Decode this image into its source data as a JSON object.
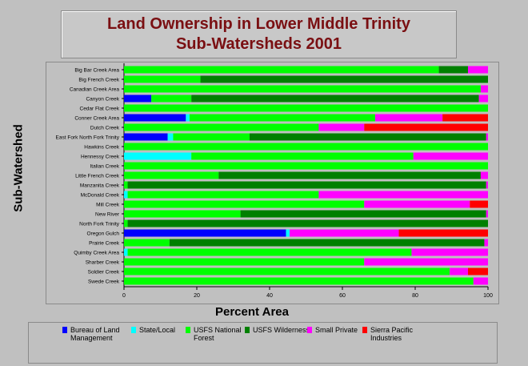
{
  "chart_data": {
    "type": "bar",
    "orientation": "horizontal",
    "stacked": true,
    "title": "Land Ownership in Lower Middle Trinity Sub-Watersheds 2001",
    "title_lines": [
      "Land Ownership in Lower Middle Trinity",
      "Sub-Watersheds 2001"
    ],
    "xlabel": "Percent Area",
    "ylabel": "Sub-Watershed",
    "xlim": [
      0,
      100
    ],
    "xticks": [
      "0",
      "20",
      "40",
      "60",
      "80",
      "100"
    ],
    "grid": false,
    "legend_position": "bottom",
    "categories": [
      "Big Bar Creek Area",
      "Big French Creek",
      "Canadian Creek Area",
      "Canyon Creek",
      "Cedar Flat Creek",
      "Conner Creek Area",
      "Dutch Creek",
      "East Fork North Fork Trinity",
      "Hawkins Creek",
      "Hennessy Creek",
      "Italian Creek",
      "Little French Creek",
      "Manzanita Creek",
      "McDonald Creek",
      "Mill Creek",
      "New River",
      "North Fork Trinity",
      "Oregon Gulch",
      "Prairie Creek",
      "Quimby Creek Area",
      "Sharber Creek",
      "Soldier Creek",
      "Swede Creek"
    ],
    "series": [
      {
        "name": "Bureau of Land Management",
        "color": "#0000ff",
        "values": [
          0,
          0,
          0,
          7.5,
          0,
          17,
          0,
          12,
          0,
          0,
          0,
          0,
          0,
          0,
          0,
          0,
          0,
          44.5,
          0,
          0,
          0,
          0,
          0
        ]
      },
      {
        "name": "State/Local",
        "color": "#00ffff",
        "values": [
          0,
          0,
          0,
          0,
          0,
          1,
          0,
          1.5,
          0,
          18.5,
          0,
          0,
          0,
          1,
          0,
          0,
          0,
          1,
          0,
          1,
          0,
          0,
          0
        ]
      },
      {
        "name": "USFS National Forest",
        "color": "#00ff00",
        "values": [
          86.5,
          21,
          98,
          11,
          100,
          51,
          53.5,
          21,
          100,
          61,
          100,
          26,
          1,
          52.5,
          66,
          32,
          1,
          0,
          12.5,
          78,
          66,
          89.5,
          96
        ]
      },
      {
        "name": "USFS Wilderness",
        "color": "#008000",
        "values": [
          8,
          79,
          0,
          79,
          0,
          0,
          0,
          65,
          0,
          0,
          0,
          72,
          98.5,
          0,
          0,
          67.5,
          99,
          0,
          86.5,
          0,
          0,
          0,
          0
        ]
      },
      {
        "name": "Small Private",
        "color": "#ff00ff",
        "values": [
          5.5,
          0,
          2,
          2.5,
          0,
          18.5,
          12.5,
          0.5,
          0,
          20.5,
          0,
          2,
          0.5,
          46.5,
          29,
          0.5,
          0,
          30,
          1,
          21,
          34,
          5,
          4
        ]
      },
      {
        "name": "Sierra Pacific Industries",
        "color": "#ff0000",
        "values": [
          0,
          0,
          0,
          0,
          0,
          12.5,
          34,
          0,
          0,
          0,
          0,
          0,
          0,
          0,
          5,
          0,
          0,
          24.5,
          0,
          0,
          0,
          5.5,
          0
        ]
      }
    ]
  },
  "legend": {
    "items": [
      {
        "label": "Bureau of Land Management",
        "color": "#0000ff"
      },
      {
        "label": "State/Local",
        "color": "#00ffff"
      },
      {
        "label": "USFS National Forest",
        "color": "#00ff00"
      },
      {
        "label": "USFS Wilderness",
        "color": "#008000"
      },
      {
        "label": "Small Private",
        "color": "#ff00ff"
      },
      {
        "label": "Sierra Pacific Industries",
        "color": "#ff0000"
      }
    ]
  }
}
